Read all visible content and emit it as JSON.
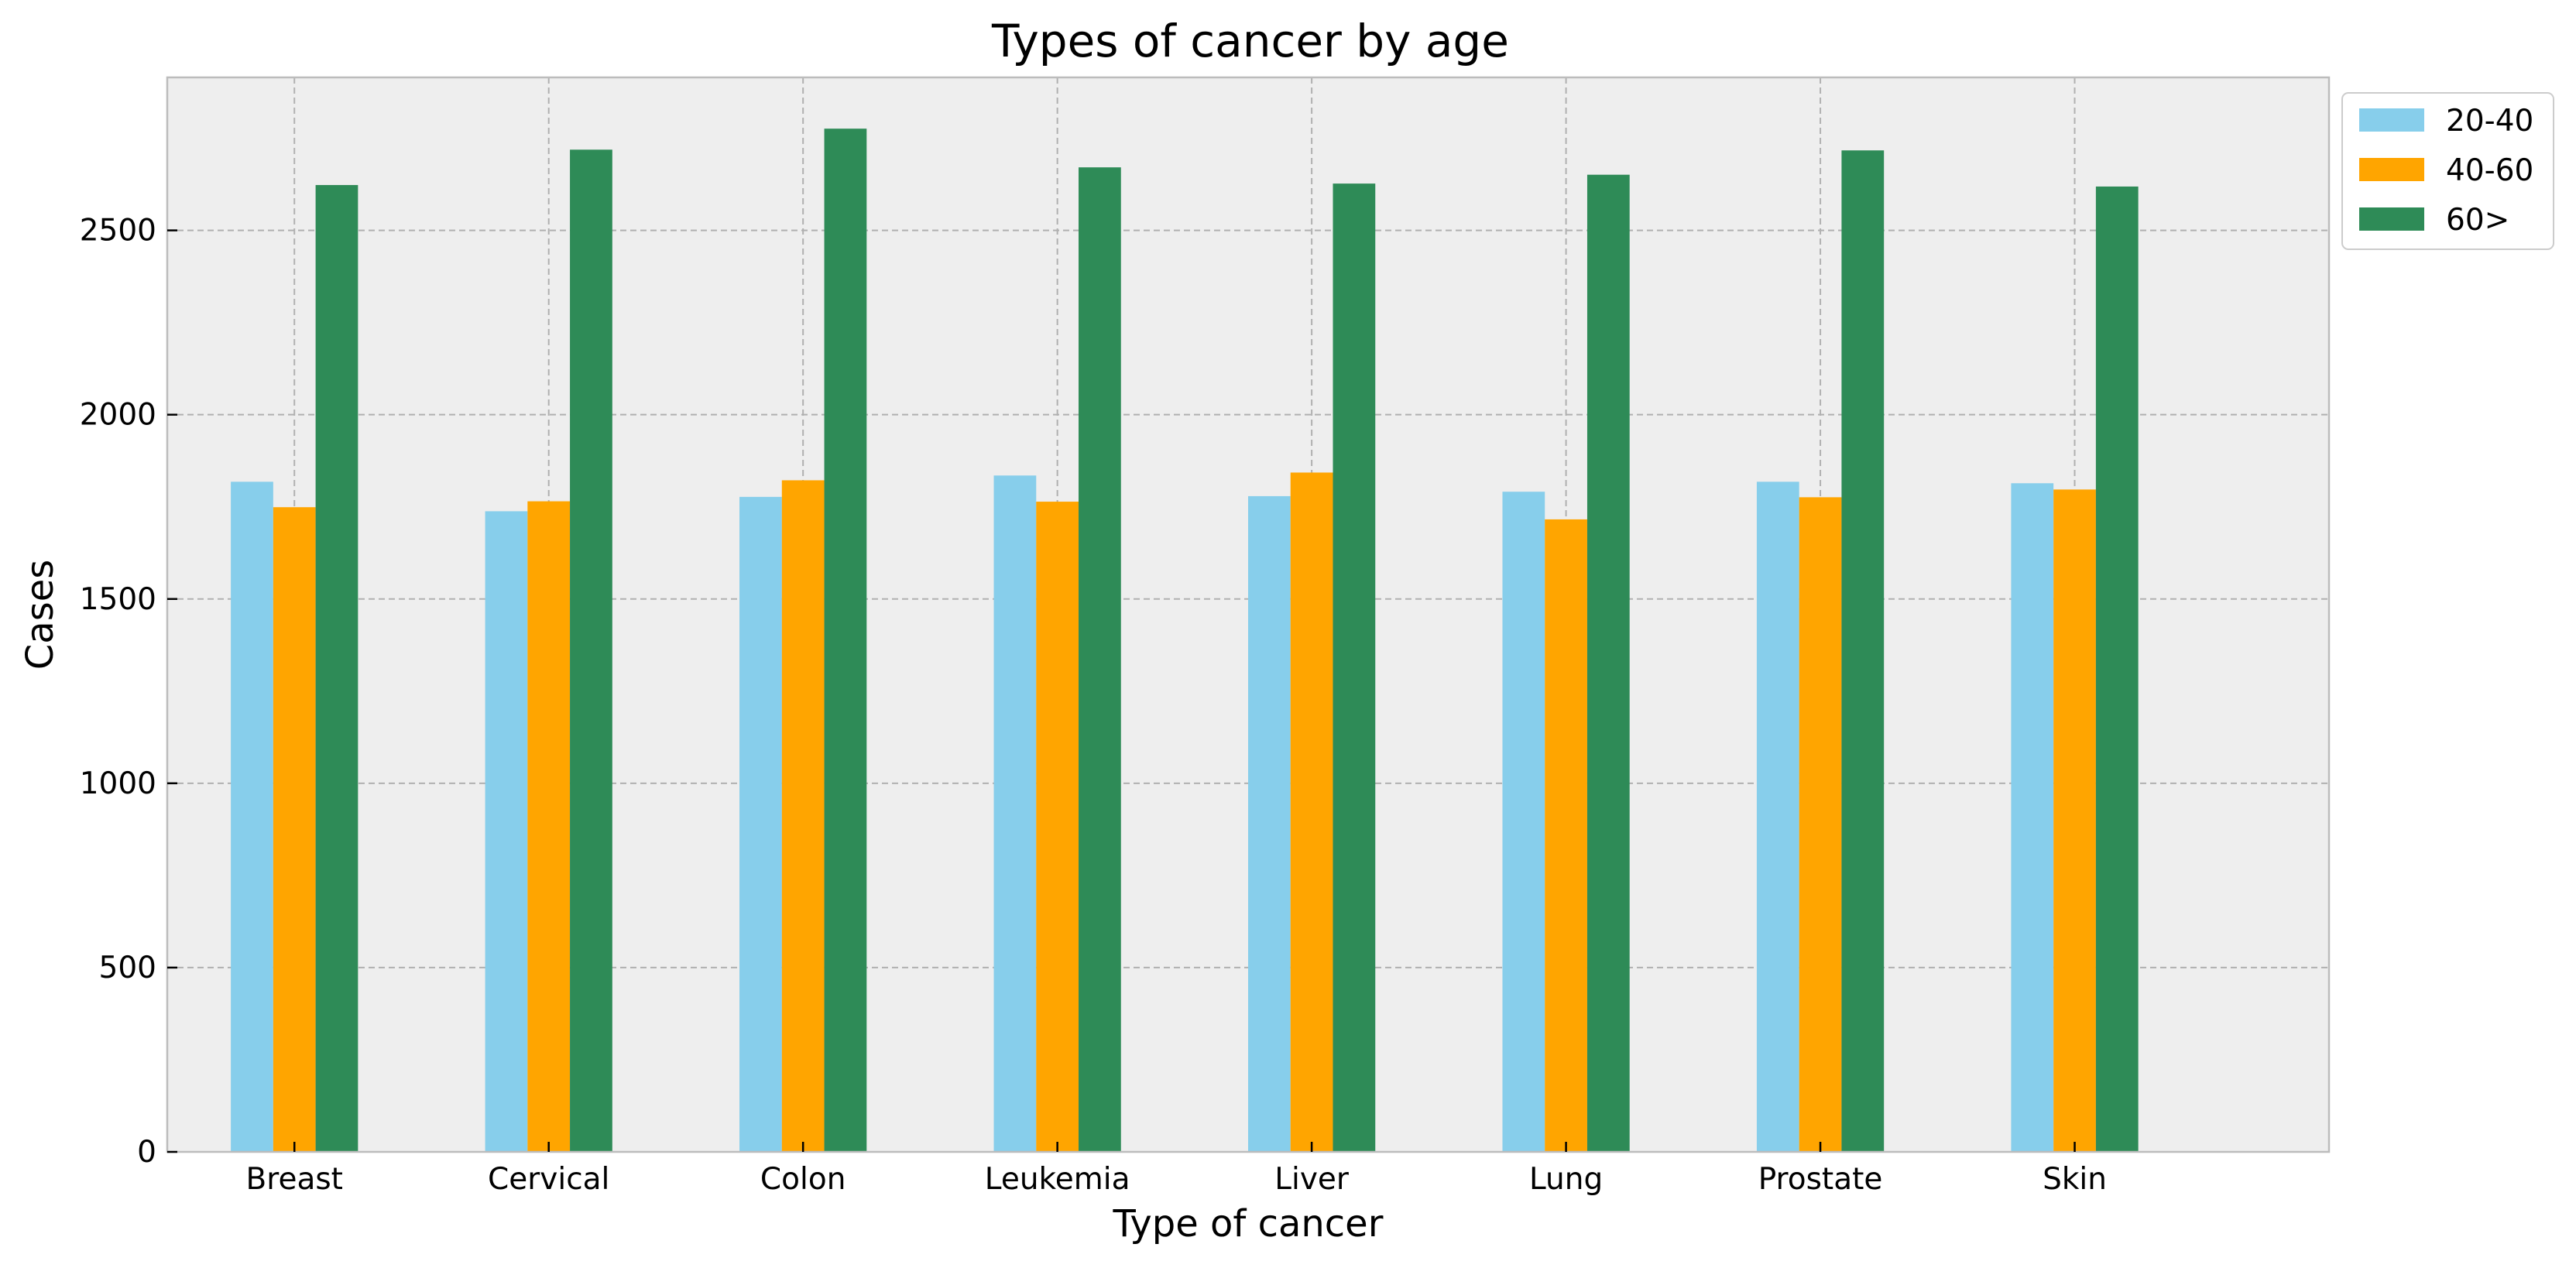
{
  "chart_data": {
    "type": "bar",
    "title": "Types of cancer by age",
    "xlabel": "Type of cancer",
    "ylabel": "Cases",
    "categories": [
      "Breast",
      "Cervical",
      "Colon",
      "Leukemia",
      "Liver",
      "Lung",
      "Prostate",
      "Skin"
    ],
    "series": [
      {
        "name": "20-40",
        "color": "#87ceeb",
        "values": [
          1818,
          1738,
          1777,
          1835,
          1779,
          1791,
          1818,
          1814
        ]
      },
      {
        "name": "40-60",
        "color": "#ffa500",
        "values": [
          1749,
          1765,
          1822,
          1764,
          1843,
          1716,
          1776,
          1797
        ]
      },
      {
        "name": "60>",
        "color": "#2e8b57",
        "values": [
          2623,
          2719,
          2776,
          2671,
          2627,
          2651,
          2717,
          2619
        ]
      }
    ],
    "ylim": [
      0,
      2915
    ],
    "yticks": [
      0,
      500,
      1000,
      1500,
      2000,
      2500
    ],
    "grid": true,
    "legend_position": "outside-top-right",
    "plot_background": "#eeeeee"
  }
}
